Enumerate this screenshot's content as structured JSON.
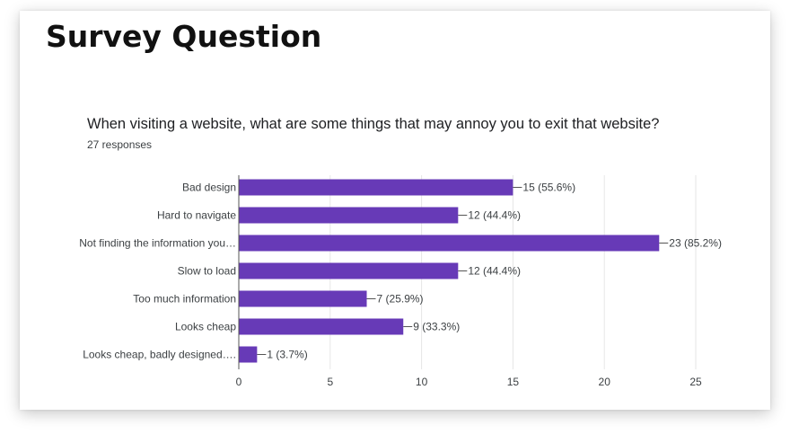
{
  "slide": {
    "title": "Survey Question"
  },
  "question": {
    "text": "When visiting a website, what are some things that may annoy you to exit that website?",
    "responses": "27 responses"
  },
  "colors": {
    "bar": "#673ab7",
    "grid": "#e6e6e6",
    "axis": "#555555",
    "text": "#3c4043"
  },
  "chart_data": {
    "type": "bar",
    "orientation": "horizontal",
    "categories": [
      "Bad design",
      "Hard to navigate",
      "Not finding the information you…",
      "Slow to load",
      "Too much information",
      "Looks cheap",
      "Looks cheap, badly designed…."
    ],
    "values": [
      15,
      12,
      23,
      12,
      7,
      9,
      1
    ],
    "data_labels": [
      "15 (55.6%)",
      "12 (44.4%)",
      "23 (85.2%)",
      "12 (44.4%)",
      "7 (25.9%)",
      "9 (33.3%)",
      "1 (3.7%)"
    ],
    "xlim": [
      0,
      25
    ],
    "xticks": [
      0,
      5,
      10,
      15,
      20,
      25
    ],
    "grid": true,
    "legend": "none"
  }
}
